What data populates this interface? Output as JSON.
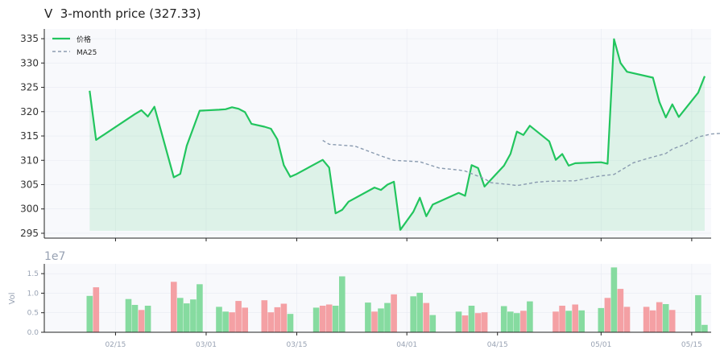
{
  "title": "V  3-month price (327.33)",
  "colors": {
    "price_line": "#22c55e",
    "price_fill": "#22c55e",
    "ma_line": "#8a9bb0",
    "volume_up": "#86dba0",
    "volume_down": "#f4a0a4",
    "plot_bg": "#f8f9fc",
    "grid": "#e8ebf2",
    "axis": "#222222",
    "price_tick_text": "#333333",
    "volume_tick_text": "#98a2b3"
  },
  "chart_data": [
    {
      "type": "line",
      "panel": "price",
      "grid": true,
      "legend_position": "top-left",
      "ylim": [
        294,
        337
      ],
      "y_ticks": [
        295,
        300,
        305,
        310,
        315,
        320,
        325,
        330,
        335
      ],
      "x_ticks": [
        "02/15",
        "03/01",
        "03/15",
        "04/01",
        "04/15",
        "05/01",
        "05/15"
      ],
      "series": [
        {
          "name": "价格",
          "values": [
            [
              "2025-02-11",
              324.3
            ],
            [
              "2025-02-12",
              314.2
            ],
            [
              "2025-02-18",
              319.5
            ],
            [
              "2025-02-19",
              320.3
            ],
            [
              "2025-02-20",
              319.0
            ],
            [
              "2025-02-21",
              321.0
            ],
            [
              "2025-02-24",
              306.5
            ],
            [
              "2025-02-25",
              307.2
            ],
            [
              "2025-02-26",
              313.0
            ],
            [
              "2025-02-28",
              320.2
            ],
            [
              "2025-03-03",
              320.4
            ],
            [
              "2025-03-04",
              320.5
            ],
            [
              "2025-03-05",
              320.9
            ],
            [
              "2025-03-06",
              320.6
            ],
            [
              "2025-03-07",
              319.9
            ],
            [
              "2025-03-08",
              317.5
            ],
            [
              "2025-03-10",
              316.9
            ],
            [
              "2025-03-11",
              316.5
            ],
            [
              "2025-03-12",
              314.3
            ],
            [
              "2025-03-13",
              309.0
            ],
            [
              "2025-03-14",
              306.6
            ],
            [
              "2025-03-15",
              307.2
            ],
            [
              "2025-03-19",
              310.1
            ],
            [
              "2025-03-20",
              308.5
            ],
            [
              "2025-03-21",
              299.1
            ],
            [
              "2025-03-22",
              299.8
            ],
            [
              "2025-03-23",
              301.5
            ],
            [
              "2025-03-27",
              304.4
            ],
            [
              "2025-03-28",
              303.9
            ],
            [
              "2025-03-29",
              305.0
            ],
            [
              "2025-03-30",
              305.6
            ],
            [
              "2025-03-31",
              295.7
            ],
            [
              "2025-04-02",
              299.4
            ],
            [
              "2025-04-03",
              302.3
            ],
            [
              "2025-04-04",
              298.5
            ],
            [
              "2025-04-05",
              300.9
            ],
            [
              "2025-04-09",
              303.3
            ],
            [
              "2025-04-10",
              302.7
            ],
            [
              "2025-04-11",
              309.0
            ],
            [
              "2025-04-12",
              308.4
            ],
            [
              "2025-04-13",
              304.6
            ],
            [
              "2025-04-16",
              308.9
            ],
            [
              "2025-04-17",
              311.3
            ],
            [
              "2025-04-18",
              315.9
            ],
            [
              "2025-04-19",
              315.2
            ],
            [
              "2025-04-20",
              317.1
            ],
            [
              "2025-04-23",
              313.9
            ],
            [
              "2025-04-24",
              310.1
            ],
            [
              "2025-04-25",
              311.3
            ],
            [
              "2025-04-26",
              308.9
            ],
            [
              "2025-04-27",
              309.4
            ],
            [
              "2025-05-01",
              309.6
            ],
            [
              "2025-05-02",
              309.3
            ],
            [
              "2025-05-03",
              334.9
            ],
            [
              "2025-05-04",
              330.0
            ],
            [
              "2025-05-05",
              328.2
            ],
            [
              "2025-05-09",
              327.0
            ],
            [
              "2025-05-10",
              322.0
            ],
            [
              "2025-05-11",
              318.8
            ],
            [
              "2025-05-12",
              321.5
            ],
            [
              "2025-05-13",
              318.9
            ],
            [
              "2025-05-16",
              323.9
            ],
            [
              "2025-05-17",
              327.3
            ]
          ]
        },
        {
          "name": "MA25",
          "style": "dashed",
          "values": [
            [
              "2025-03-19",
              314.1
            ],
            [
              "2025-03-20",
              313.3
            ],
            [
              "2025-03-23",
              313.0
            ],
            [
              "2025-03-24",
              312.9
            ],
            [
              "2025-03-28",
              310.9
            ],
            [
              "2025-03-30",
              310.0
            ],
            [
              "2025-04-03",
              309.7
            ],
            [
              "2025-04-06",
              308.4
            ],
            [
              "2025-04-09",
              308.0
            ],
            [
              "2025-04-10",
              307.8
            ],
            [
              "2025-04-13",
              306.2
            ],
            [
              "2025-04-14",
              305.4
            ],
            [
              "2025-04-17",
              305.0
            ],
            [
              "2025-04-18",
              304.8
            ],
            [
              "2025-04-21",
              305.5
            ],
            [
              "2025-04-23",
              305.7
            ],
            [
              "2025-04-27",
              305.8
            ],
            [
              "2025-04-30",
              306.6
            ],
            [
              "2025-05-01",
              306.8
            ],
            [
              "2025-05-03",
              307.1
            ],
            [
              "2025-05-06",
              309.5
            ],
            [
              "2025-05-08",
              310.3
            ],
            [
              "2025-05-11",
              311.4
            ],
            [
              "2025-05-12",
              312.3
            ],
            [
              "2025-05-14",
              313.3
            ],
            [
              "2025-05-16",
              314.8
            ],
            [
              "2025-05-18",
              315.4
            ],
            [
              "2025-05-20",
              315.6
            ],
            [
              "2025-05-21",
              316.6
            ]
          ]
        }
      ]
    },
    {
      "type": "bar",
      "panel": "volume",
      "ylabel": "Vol",
      "y_scale_label": "1e7",
      "ylim": [
        0,
        1.75
      ],
      "y_ticks": [
        "0.0",
        "0.5",
        "1.0",
        "1.5"
      ],
      "x_ticks": [
        "02/15",
        "03/01",
        "03/15",
        "04/01",
        "04/15",
        "05/01",
        "05/15"
      ],
      "bars": [
        [
          "2025-02-11",
          0.93,
          "up"
        ],
        [
          "2025-02-12",
          1.15,
          "down"
        ],
        [
          "2025-02-17",
          0.85,
          "up"
        ],
        [
          "2025-02-18",
          0.7,
          "up"
        ],
        [
          "2025-02-19",
          0.57,
          "down"
        ],
        [
          "2025-02-20",
          0.68,
          "up"
        ],
        [
          "2025-02-24",
          1.29,
          "down"
        ],
        [
          "2025-02-25",
          0.88,
          "up"
        ],
        [
          "2025-02-26",
          0.74,
          "up"
        ],
        [
          "2025-02-27",
          0.84,
          "up"
        ],
        [
          "2025-02-28",
          1.23,
          "up"
        ],
        [
          "2025-03-03",
          0.65,
          "up"
        ],
        [
          "2025-03-04",
          0.53,
          "up"
        ],
        [
          "2025-03-05",
          0.51,
          "down"
        ],
        [
          "2025-03-06",
          0.8,
          "down"
        ],
        [
          "2025-03-07",
          0.63,
          "down"
        ],
        [
          "2025-03-10",
          0.82,
          "down"
        ],
        [
          "2025-03-11",
          0.51,
          "down"
        ],
        [
          "2025-03-12",
          0.64,
          "down"
        ],
        [
          "2025-03-13",
          0.73,
          "down"
        ],
        [
          "2025-03-14",
          0.47,
          "up"
        ],
        [
          "2025-03-18",
          0.63,
          "up"
        ],
        [
          "2025-03-19",
          0.68,
          "down"
        ],
        [
          "2025-03-20",
          0.71,
          "down"
        ],
        [
          "2025-03-21",
          0.68,
          "up"
        ],
        [
          "2025-03-22",
          1.43,
          "up"
        ],
        [
          "2025-03-26",
          0.76,
          "up"
        ],
        [
          "2025-03-27",
          0.53,
          "down"
        ],
        [
          "2025-03-28",
          0.61,
          "up"
        ],
        [
          "2025-03-29",
          0.75,
          "up"
        ],
        [
          "2025-03-30",
          0.97,
          "down"
        ],
        [
          "2025-04-02",
          0.92,
          "up"
        ],
        [
          "2025-04-03",
          1.01,
          "up"
        ],
        [
          "2025-04-04",
          0.75,
          "down"
        ],
        [
          "2025-04-05",
          0.44,
          "up"
        ],
        [
          "2025-04-09",
          0.53,
          "up"
        ],
        [
          "2025-04-10",
          0.43,
          "down"
        ],
        [
          "2025-04-11",
          0.68,
          "up"
        ],
        [
          "2025-04-12",
          0.49,
          "down"
        ],
        [
          "2025-04-13",
          0.51,
          "down"
        ],
        [
          "2025-04-16",
          0.67,
          "up"
        ],
        [
          "2025-04-17",
          0.53,
          "up"
        ],
        [
          "2025-04-18",
          0.49,
          "up"
        ],
        [
          "2025-04-19",
          0.55,
          "down"
        ],
        [
          "2025-04-20",
          0.79,
          "up"
        ],
        [
          "2025-04-24",
          0.53,
          "down"
        ],
        [
          "2025-04-25",
          0.68,
          "down"
        ],
        [
          "2025-04-26",
          0.55,
          "up"
        ],
        [
          "2025-04-27",
          0.71,
          "down"
        ],
        [
          "2025-04-28",
          0.56,
          "up"
        ],
        [
          "2025-05-01",
          0.62,
          "up"
        ],
        [
          "2025-05-02",
          0.88,
          "down"
        ],
        [
          "2025-05-03",
          1.66,
          "up"
        ],
        [
          "2025-05-04",
          1.11,
          "down"
        ],
        [
          "2025-05-05",
          0.65,
          "down"
        ],
        [
          "2025-05-08",
          0.65,
          "down"
        ],
        [
          "2025-05-09",
          0.56,
          "down"
        ],
        [
          "2025-05-10",
          0.77,
          "down"
        ],
        [
          "2025-05-11",
          0.72,
          "up"
        ],
        [
          "2025-05-12",
          0.57,
          "down"
        ],
        [
          "2025-05-16",
          0.95,
          "up"
        ],
        [
          "2025-05-17",
          0.19,
          "up"
        ]
      ]
    }
  ]
}
